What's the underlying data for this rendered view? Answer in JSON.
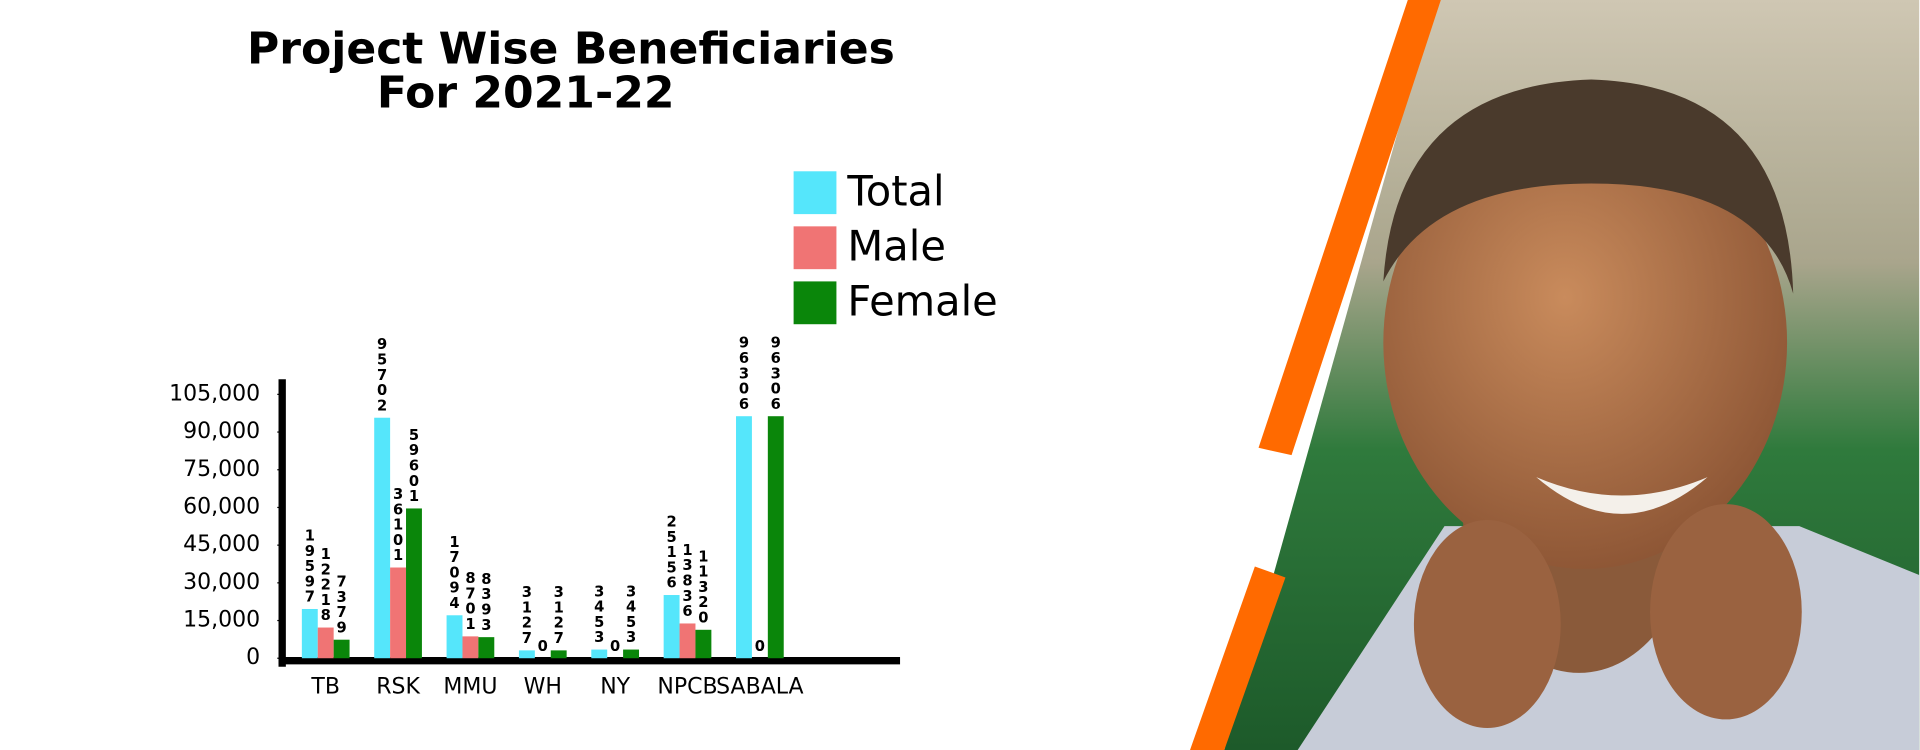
{
  "chart_data": {
    "type": "bar",
    "title": [
      "Project Wise Beneficiaries",
      "For 2021-22"
    ],
    "categories": [
      "TB",
      "RSK",
      "MMU",
      "WH",
      "NY",
      "NPCB",
      "SABALA"
    ],
    "series": [
      {
        "name": "Total",
        "color": "#55e6fb",
        "values": [
          19597,
          95702,
          17094,
          3127,
          3453,
          25156,
          96306
        ]
      },
      {
        "name": "Male",
        "color": "#f07474",
        "values": [
          12218,
          36101,
          8701,
          0,
          0,
          13836,
          0
        ]
      },
      {
        "name": "Female",
        "color": "#0a860a",
        "values": [
          7379,
          59601,
          8393,
          3127,
          3453,
          11320,
          96306
        ]
      }
    ],
    "ylim": [
      0,
      111000
    ],
    "yticks": [
      0,
      {
        "value": 15000,
        "label": "15,000"
      },
      {
        "value": 30000,
        "label": "30,000"
      },
      {
        "value": 45000,
        "label": "45,000"
      },
      {
        "value": 60000,
        "label": "60,000"
      },
      {
        "value": 75000,
        "label": "75,000"
      },
      {
        "value": 90000,
        "label": "90,000"
      },
      {
        "value": 105000,
        "label": "105,000"
      }
    ],
    "legend": "top-right"
  }
}
